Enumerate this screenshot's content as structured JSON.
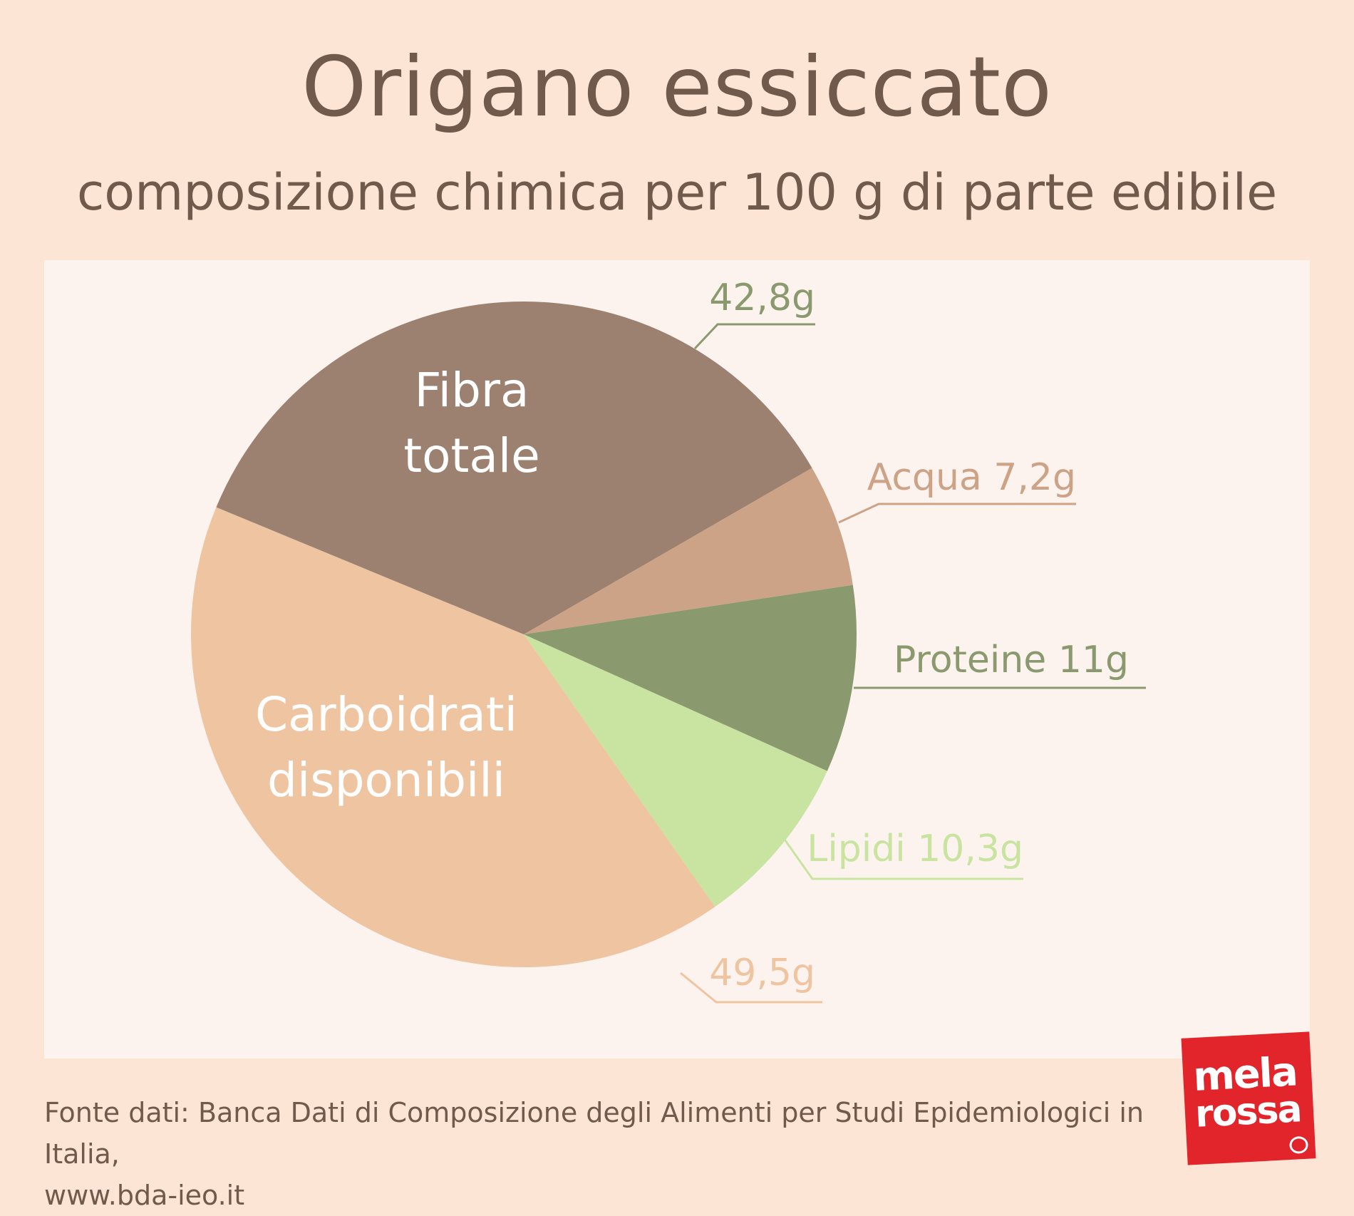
{
  "header": {
    "title": "Origano essiccato",
    "subtitle": "composizione chimica per 100 g di parte edibile"
  },
  "chart_data": {
    "type": "pie",
    "title": "Origano essiccato",
    "subtitle": "composizione chimica per 100 g di parte edibile",
    "unit": "g",
    "slices": [
      {
        "key": "fibra",
        "inner_label": [
          "Fibra",
          "totale"
        ],
        "value_label": "42,8g",
        "value": 42.8,
        "color": "#9c8170",
        "label_color": "#8a9a6e"
      },
      {
        "key": "acqua",
        "inner_label": [],
        "value_label": "Acqua 7,2g",
        "value": 7.2,
        "color": "#cda387",
        "label_color": "#cda387"
      },
      {
        "key": "proteine",
        "inner_label": [],
        "value_label": "Proteine 11g",
        "value": 11,
        "color": "#8a9a6e",
        "label_color": "#8a9a6e"
      },
      {
        "key": "lipidi",
        "inner_label": [],
        "value_label": "Lipidi 10,3g",
        "value": 10.3,
        "color": "#c8e4a0",
        "label_color": "#c8e4a0"
      },
      {
        "key": "carboidrati",
        "inner_label": [
          "Carboidrati",
          "disponibili"
        ],
        "value_label": "49,5g",
        "value": 49.5,
        "color": "#eec4a1",
        "label_color": "#eec4a1"
      }
    ]
  },
  "footer": {
    "source_line1": "Fonte dati: Banca Dati di Composizione degli Alimenti per Studi Epidemiologici in Italia,",
    "source_line2": "www.bda-ieo.it"
  },
  "logo": {
    "line1": "mela",
    "line2": "rossa",
    "color": "#e2242b"
  },
  "colors": {
    "background": "#fde5d6",
    "panel": "#fdf3ee",
    "text": "#6f5a4c"
  }
}
